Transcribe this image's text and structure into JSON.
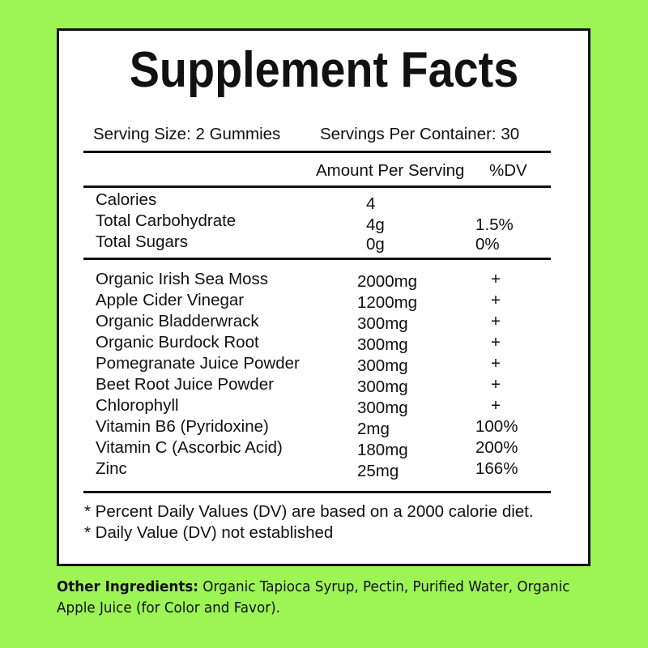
{
  "title": "Supplement Facts",
  "serving_size": "Serving Size: 2 Gummies",
  "servings_per_container": "Servings Per Container: 30",
  "header": {
    "amount": "Amount Per Serving",
    "dv": "%DV"
  },
  "macros": [
    {
      "name": "Calories",
      "amount": "4",
      "dv": ""
    },
    {
      "name": "Total Carbohydrate",
      "amount": "4g",
      "dv": "1.5%"
    },
    {
      "name": "Total Sugars",
      "amount": "0g",
      "dv": "0%"
    }
  ],
  "ingredients": [
    {
      "name": "Organic Irish Sea Moss",
      "amount": "2000mg",
      "dv": "+"
    },
    {
      "name": "Apple Cider Vinegar",
      "amount": "1200mg",
      "dv": "+"
    },
    {
      "name": "Organic Bladderwrack",
      "amount": "300mg",
      "dv": "+"
    },
    {
      "name": "Organic Burdock Root",
      "amount": "300mg",
      "dv": "+"
    },
    {
      "name": "Pomegranate Juice Powder",
      "amount": "300mg",
      "dv": "+"
    },
    {
      "name": "Beet Root Juice Powder",
      "amount": "300mg",
      "dv": "+"
    },
    {
      "name": "Chlorophyll",
      "amount": "300mg",
      "dv": "+"
    },
    {
      "name": "Vitamin B6 (Pyridoxine)",
      "amount": "2mg",
      "dv": "100%"
    },
    {
      "name": "Vitamin C (Ascorbic Acid)",
      "amount": "180mg",
      "dv": "200%"
    },
    {
      "name": "Zinc",
      "amount": "25mg",
      "dv": "166%"
    }
  ],
  "footnotes": [
    "* Percent Daily Values (DV) are based on a 2000 calorie diet.",
    "* Daily Value (DV) not established"
  ],
  "other_ingredients": {
    "label": "Other Ingredients:",
    "text": " Organic Tapioca Syrup, Pectin, Purified Water, Organic Apple Juice (for Color and Favor)."
  },
  "colors": {
    "background": "#9df455",
    "panel": "#ffffff",
    "text": "#111111"
  }
}
